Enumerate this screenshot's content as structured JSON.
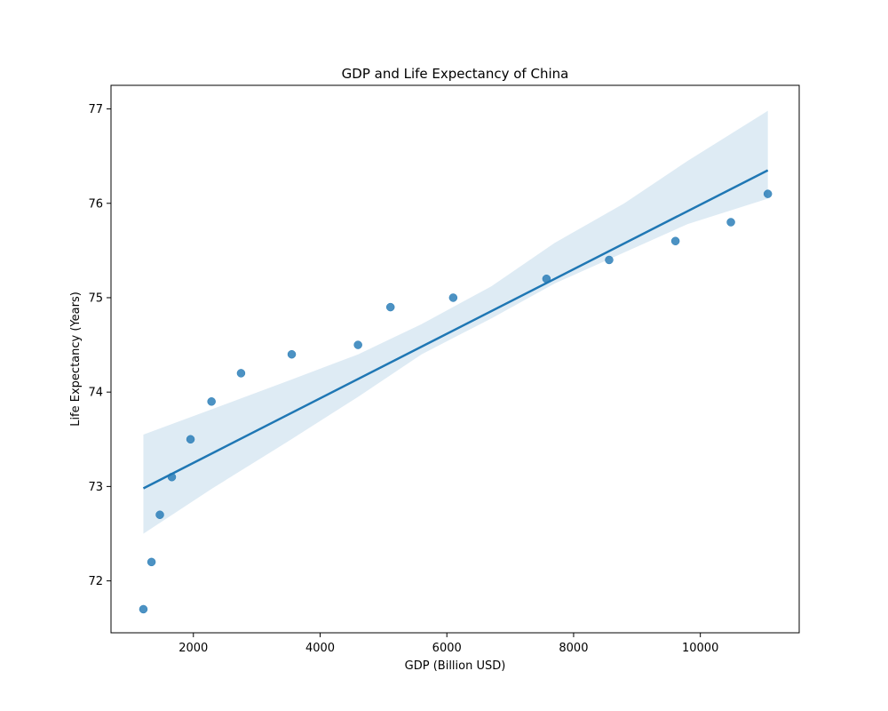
{
  "chart_data": {
    "type": "scatter",
    "title": "GDP and Life Expectancy of China",
    "xlabel": "GDP (Billion USD)",
    "ylabel": "Life Expectancy (Years)",
    "xlim": [
      700,
      11560
    ],
    "ylim": [
      71.45,
      77.25
    ],
    "x_ticks": [
      2000,
      4000,
      6000,
      8000,
      10000
    ],
    "y_ticks": [
      72,
      73,
      74,
      75,
      76,
      77
    ],
    "grid": false,
    "legend": "none",
    "colors": {
      "points": "#1f77b4",
      "line": "#1f77b4",
      "band": "#1f77b4"
    },
    "series": [
      {
        "x": [
          1211,
          1339,
          1471,
          1660,
          1955,
          2286,
          2752,
          3552,
          4598,
          5110,
          6100,
          7572,
          8561,
          9607,
          10482,
          11065
        ],
        "y": [
          71.7,
          72.2,
          72.7,
          73.1,
          73.5,
          73.9,
          74.2,
          74.4,
          74.5,
          74.9,
          75.0,
          75.2,
          75.4,
          75.6,
          75.8,
          76.1
        ]
      }
    ],
    "regression": {
      "x_range": [
        1211,
        11065
      ],
      "y_range": [
        72.98,
        76.35
      ],
      "ci_x": [
        1211,
        2300,
        3500,
        4600,
        5600,
        6700,
        7700,
        8800,
        9800,
        11065
      ],
      "ci_lower": [
        72.5,
        72.98,
        73.48,
        73.95,
        74.4,
        74.78,
        75.15,
        75.48,
        75.78,
        76.05
      ],
      "ci_upper": [
        73.55,
        73.82,
        74.12,
        74.4,
        74.72,
        75.12,
        75.58,
        76.0,
        76.45,
        76.98
      ]
    }
  }
}
